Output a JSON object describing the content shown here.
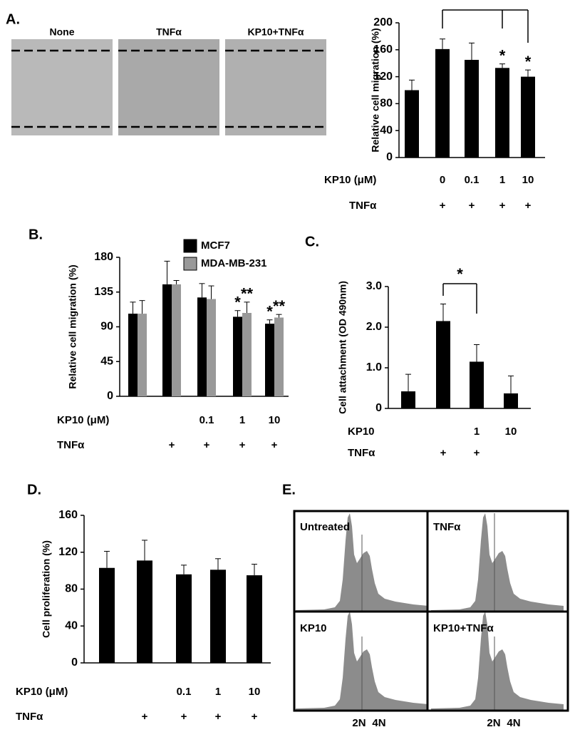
{
  "panel_labels": [
    "A.",
    "B.",
    "C.",
    "D.",
    "E."
  ],
  "micrographs": {
    "labels": [
      "None",
      "TNFα",
      "KP10+TNFα"
    ]
  },
  "flow": {
    "labels": [
      "Untreated",
      "TNFα",
      "KP10",
      "KP10+TNFα"
    ],
    "x_labels": [
      "2N",
      "4N"
    ]
  },
  "chart_data": [
    {
      "type": "bar",
      "y_label": "Relative cell migration (%)",
      "values": [
        100,
        161,
        145,
        133,
        120
      ],
      "errors": [
        15,
        15,
        25,
        6,
        10
      ],
      "color": "#000000",
      "annotations": [
        null,
        null,
        null,
        "*",
        "*"
      ],
      "condition_rows": [
        {
          "label": "KP10 (μM)",
          "values": [
            null,
            "0",
            "0.1",
            "1",
            "10"
          ]
        },
        {
          "label": "TNFα",
          "values": [
            null,
            "+",
            "+",
            "+",
            "+"
          ]
        }
      ],
      "ylim": [
        0,
        200
      ],
      "yticks": [
        0,
        40,
        80,
        120,
        160,
        200
      ]
    },
    {
      "type": "grouped_bar",
      "y_label": "Relative cell migration (%)",
      "series": [
        {
          "name": "MCF7",
          "color": "#000000",
          "values": [
            107,
            145,
            128,
            103,
            94
          ],
          "errors": [
            15,
            30,
            18,
            8,
            5
          ],
          "annotations": [
            null,
            null,
            null,
            "*",
            "*"
          ]
        },
        {
          "name": "MDA-MB-231",
          "color": "#999999",
          "values": [
            107,
            145,
            126,
            108,
            102
          ],
          "errors": [
            17,
            5,
            17,
            14,
            4
          ],
          "annotations": [
            null,
            null,
            null,
            "**",
            "**"
          ]
        }
      ],
      "condition_rows": [
        {
          "label": "KP10 (μM)",
          "values": [
            null,
            null,
            "0.1",
            "1",
            "10"
          ]
        },
        {
          "label": "TNFα",
          "values": [
            null,
            "+",
            "+",
            "+",
            "+"
          ]
        }
      ],
      "ylim": [
        0,
        180
      ],
      "yticks": [
        0,
        45,
        90,
        135,
        180
      ],
      "legend": "top-center"
    },
    {
      "type": "bar",
      "y_label": "Cell attachment (OD 490nm)",
      "values": [
        0.42,
        2.15,
        1.15,
        0.37
      ],
      "errors": [
        0.42,
        0.42,
        0.42,
        0.43
      ],
      "color": "#000000",
      "bracket_label": "*",
      "condition_rows": [
        {
          "label": "KP10",
          "values": [
            null,
            null,
            "1",
            "10"
          ]
        },
        {
          "label": "TNFα",
          "values": [
            null,
            "+",
            "+",
            null
          ]
        }
      ],
      "ylim": [
        0,
        3
      ],
      "yticks": [
        0,
        {
          "value": 1,
          "label": "1.0"
        },
        {
          "value": 2,
          "label": "2.0"
        },
        {
          "value": 3,
          "label": "3.0"
        }
      ]
    },
    {
      "type": "bar",
      "y_label": "Cell proliferation (%)",
      "values": [
        103,
        111,
        96,
        101,
        95
      ],
      "errors": [
        18,
        22,
        10,
        12,
        12
      ],
      "color": "#000000",
      "condition_rows": [
        {
          "label": "KP10 (μM)",
          "values": [
            null,
            null,
            "0.1",
            "1",
            "10"
          ]
        },
        {
          "label": "TNFα",
          "values": [
            null,
            "+",
            "+",
            "+",
            "+"
          ]
        }
      ],
      "ylim": [
        0,
        160
      ],
      "yticks": [
        0,
        40,
        80,
        120,
        160
      ]
    }
  ]
}
